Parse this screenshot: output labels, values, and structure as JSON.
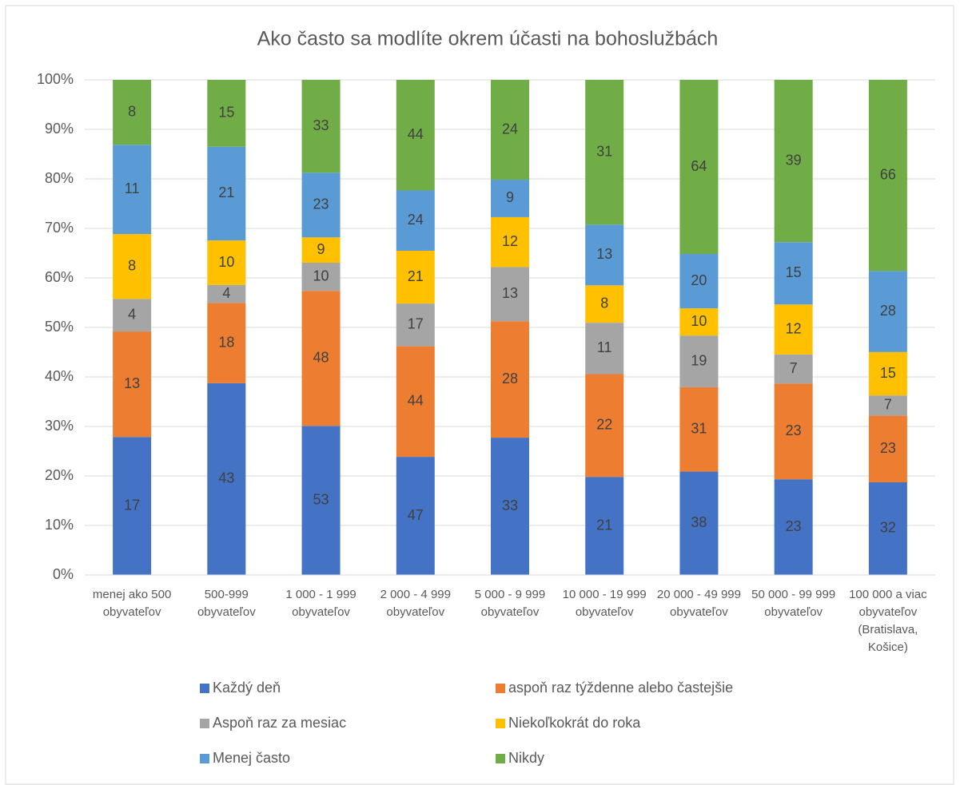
{
  "chart_data": {
    "type": "stacked_bar_100",
    "title": "Ako často sa modlíte okrem účasti na bohoslužbách",
    "categories": [
      "menej ako 500\nobyvateľov",
      "500-999\nobyvateľov",
      "1 000 - 1 999\nobyvateľov",
      "2 000 - 4 999\nobyvateľov",
      "5 000 - 9 999\nobyvateľov",
      "10 000 - 19 999\nobyvateľov",
      "20 000 - 49 999\nobyvateľov",
      "50 000 - 99 999\nobyvateľov",
      "100 000 a viac\nobyvateľov\n(Bratislava,\nKošice)"
    ],
    "series": [
      {
        "name": "Každý deň",
        "color": "#4472c4",
        "values": [
          17,
          43,
          53,
          47,
          33,
          21,
          38,
          23,
          32
        ]
      },
      {
        "name": "aspoň raz týždenne alebo častejšie",
        "color": "#ed7d31",
        "values": [
          13,
          18,
          48,
          44,
          28,
          22,
          31,
          23,
          23
        ]
      },
      {
        "name": "Aspoň raz za mesiac",
        "color": "#a5a5a5",
        "values": [
          4,
          4,
          10,
          17,
          13,
          11,
          19,
          7,
          7
        ]
      },
      {
        "name": "Niekoľkokrát do roka",
        "color": "#ffc000",
        "values": [
          8,
          10,
          9,
          21,
          12,
          8,
          10,
          12,
          15
        ]
      },
      {
        "name": "Menej často",
        "color": "#5b9bd5",
        "values": [
          11,
          21,
          23,
          24,
          9,
          13,
          20,
          15,
          28
        ]
      },
      {
        "name": "Nikdy",
        "color": "#70ad47",
        "values": [
          8,
          15,
          33,
          44,
          24,
          31,
          64,
          39,
          66
        ]
      }
    ],
    "ylim": [
      0,
      100
    ],
    "yticks": [
      {
        "value": 0,
        "label": "0%"
      },
      {
        "value": 10,
        "label": "10%"
      },
      {
        "value": 20,
        "label": "20%"
      },
      {
        "value": 30,
        "label": "30%"
      },
      {
        "value": 40,
        "label": "40%"
      },
      {
        "value": 50,
        "label": "50%"
      },
      {
        "value": 60,
        "label": "60%"
      },
      {
        "value": 70,
        "label": "70%"
      },
      {
        "value": 80,
        "label": "80%"
      },
      {
        "value": 90,
        "label": "90%"
      },
      {
        "value": 100,
        "label": "100%"
      }
    ],
    "grid": true,
    "legend": "bottom"
  }
}
